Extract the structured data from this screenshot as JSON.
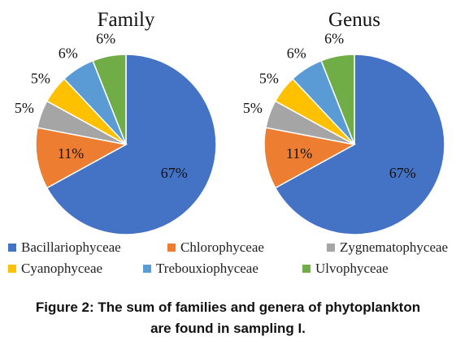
{
  "caption": {
    "line1": "Figure 2: The sum of families and genera of phytoplankton",
    "line2": "are found in sampling I."
  },
  "chart_data": [
    {
      "type": "pie",
      "title": "Family",
      "categories": [
        "Bacillariophyceae",
        "Chlorophyceae",
        "Zygnematophyceae",
        "Cyanophyceae",
        "Trebouxiophyceae",
        "Ulvophyceae"
      ],
      "values": [
        67,
        11,
        5,
        5,
        6,
        6
      ],
      "labels": [
        "67%",
        "11%",
        "5%",
        "5%",
        "6%",
        "6%"
      ],
      "colors": [
        "#4472C4",
        "#ED7D31",
        "#A5A5A5",
        "#FFC000",
        "#5B9BD5",
        "#70AD47"
      ],
      "legend": "bottom"
    },
    {
      "type": "pie",
      "title": "Genus",
      "categories": [
        "Bacillariophyceae",
        "Chlorophyceae",
        "Zygnematophyceae",
        "Cyanophyceae",
        "Trebouxiophyceae",
        "Ulvophyceae"
      ],
      "values": [
        67,
        11,
        5,
        5,
        6,
        6
      ],
      "labels": [
        "67%",
        "11%",
        "5%",
        "5%",
        "6%",
        "6%"
      ],
      "colors": [
        "#4472C4",
        "#ED7D31",
        "#A5A5A5",
        "#FFC000",
        "#5B9BD5",
        "#70AD47"
      ],
      "legend": "bottom"
    }
  ]
}
